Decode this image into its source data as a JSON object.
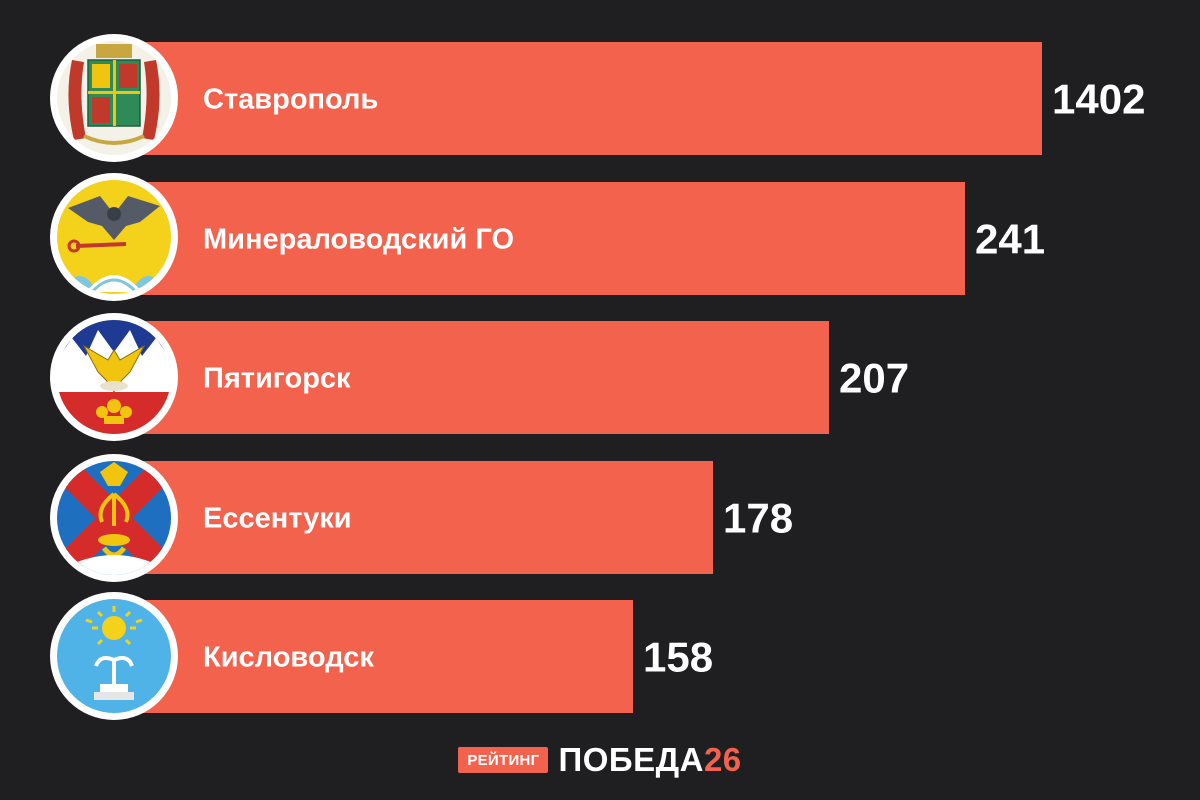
{
  "chart_data": {
    "type": "bar",
    "orientation": "horizontal",
    "categories": [
      "Ставрополь",
      "Минераловодский ГО",
      "Пятигорск",
      "Ессентуки",
      "Кисловодск"
    ],
    "values": [
      1402,
      241,
      207,
      178,
      158
    ],
    "icons": [
      "stavropol-coat-of-arms-icon",
      "mineralovodsky-coat-of-arms-icon",
      "pyatigorsk-coat-of-arms-icon",
      "essentuki-coat-of-arms-icon",
      "kislovodsk-coat-of-arms-icon"
    ],
    "bar_color": "#f2624d",
    "background_color": "#1f1f22",
    "value_labels": "outside-end",
    "grid": false,
    "legend": "none"
  },
  "footer": {
    "badge": "РЕЙТИНГ",
    "brand_text": "ПОБЕДА",
    "brand_number": "26"
  },
  "colors": {
    "accent": "#f2624d",
    "text": "#ffffff"
  }
}
